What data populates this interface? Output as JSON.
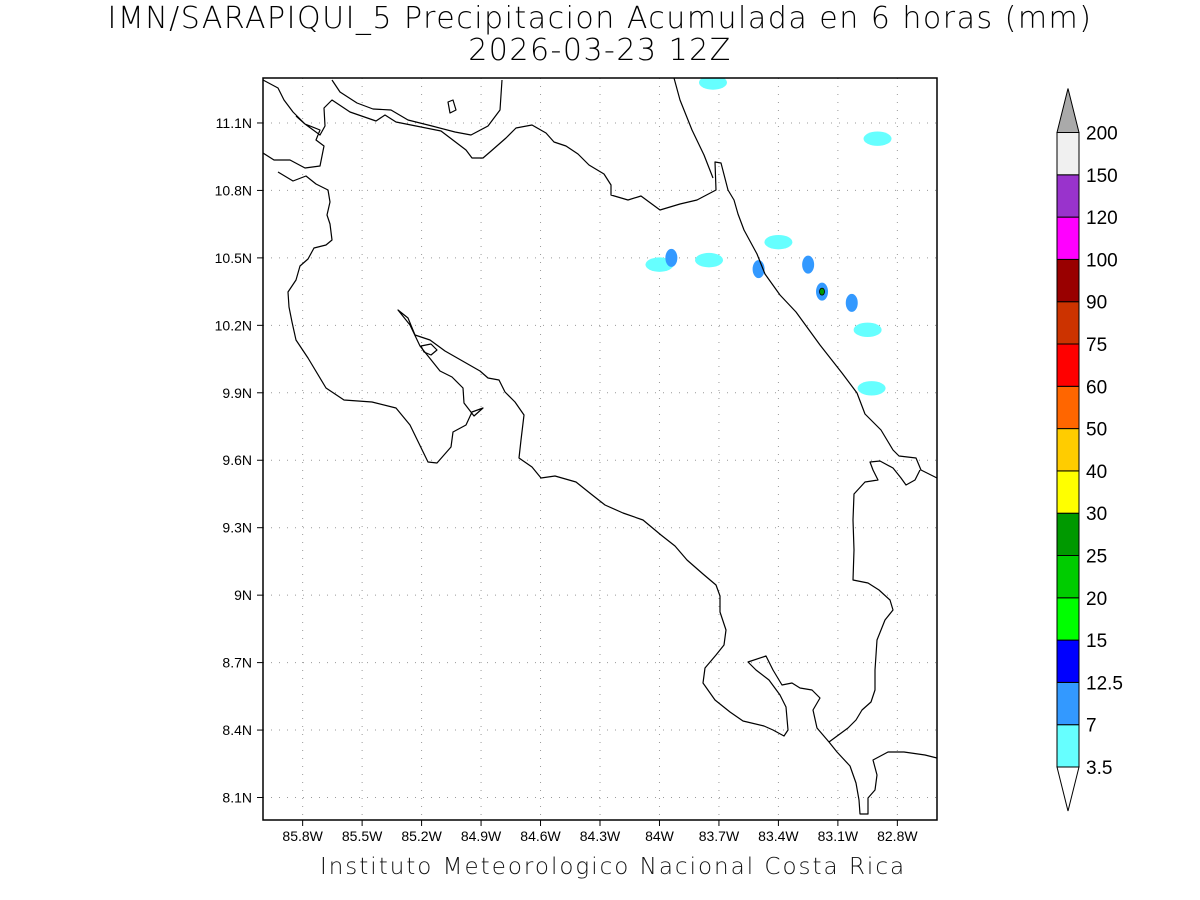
{
  "title": {
    "line1": "IMN/SARAPIQUI_5 Precipitacion Acumulada en 6 horas (mm)",
    "line2": "2026-03-23 12Z"
  },
  "credit": "Instituto Meteorologico Nacional Costa Rica",
  "map": {
    "lat_range": [
      8.0,
      11.3
    ],
    "lon_range": [
      -86.0,
      -82.6
    ],
    "lat_ticks": [
      "11.1N",
      "10.8N",
      "10.5N",
      "10.2N",
      "9.9N",
      "9.6N",
      "9.3N",
      "9N",
      "8.7N",
      "8.4N",
      "8.1N"
    ],
    "lon_ticks": [
      "85.8W",
      "85.5W",
      "85.2W",
      "84.9W",
      "84.6W",
      "84.3W",
      "84W",
      "83.7W",
      "83.4W",
      "83.1W",
      "82.8W"
    ],
    "grid": true,
    "precip_cells": [
      {
        "lon": -84.0,
        "lat": 10.47,
        "level": "3.5"
      },
      {
        "lon": -83.94,
        "lat": 10.5,
        "level": "7"
      },
      {
        "lon": -83.75,
        "lat": 10.49,
        "level": "3.5"
      },
      {
        "lon": -83.5,
        "lat": 10.45,
        "level": "7"
      },
      {
        "lon": -83.4,
        "lat": 10.57,
        "level": "3.5"
      },
      {
        "lon": -83.25,
        "lat": 10.47,
        "level": "7"
      },
      {
        "lon": -83.18,
        "lat": 10.35,
        "level": "7"
      },
      {
        "lon": -83.18,
        "lat": 10.35,
        "level": "25"
      },
      {
        "lon": -83.03,
        "lat": 10.3,
        "level": "7"
      },
      {
        "lon": -82.95,
        "lat": 10.18,
        "level": "3.5"
      },
      {
        "lon": -82.9,
        "lat": 11.03,
        "level": "3.5"
      },
      {
        "lon": -82.93,
        "lat": 9.92,
        "level": "3.5"
      },
      {
        "lon": -83.73,
        "lat": 11.28,
        "level": "3.5"
      }
    ]
  },
  "colorbar": {
    "levels": [
      "3.5",
      "7",
      "12.5",
      "15",
      "20",
      "25",
      "30",
      "40",
      "50",
      "60",
      "75",
      "90",
      "100",
      "120",
      "150",
      "200"
    ],
    "colors": [
      "#66ffff",
      "#3399ff",
      "#0000ff",
      "#00ff00",
      "#00cc00",
      "#009900",
      "#ffff00",
      "#ffcc00",
      "#ff6600",
      "#ff0000",
      "#cc3300",
      "#990000",
      "#ff00ff",
      "#9933cc",
      "#f0f0f0"
    ],
    "over_color": "#aaaaaa",
    "under_color": "#ffffff"
  }
}
